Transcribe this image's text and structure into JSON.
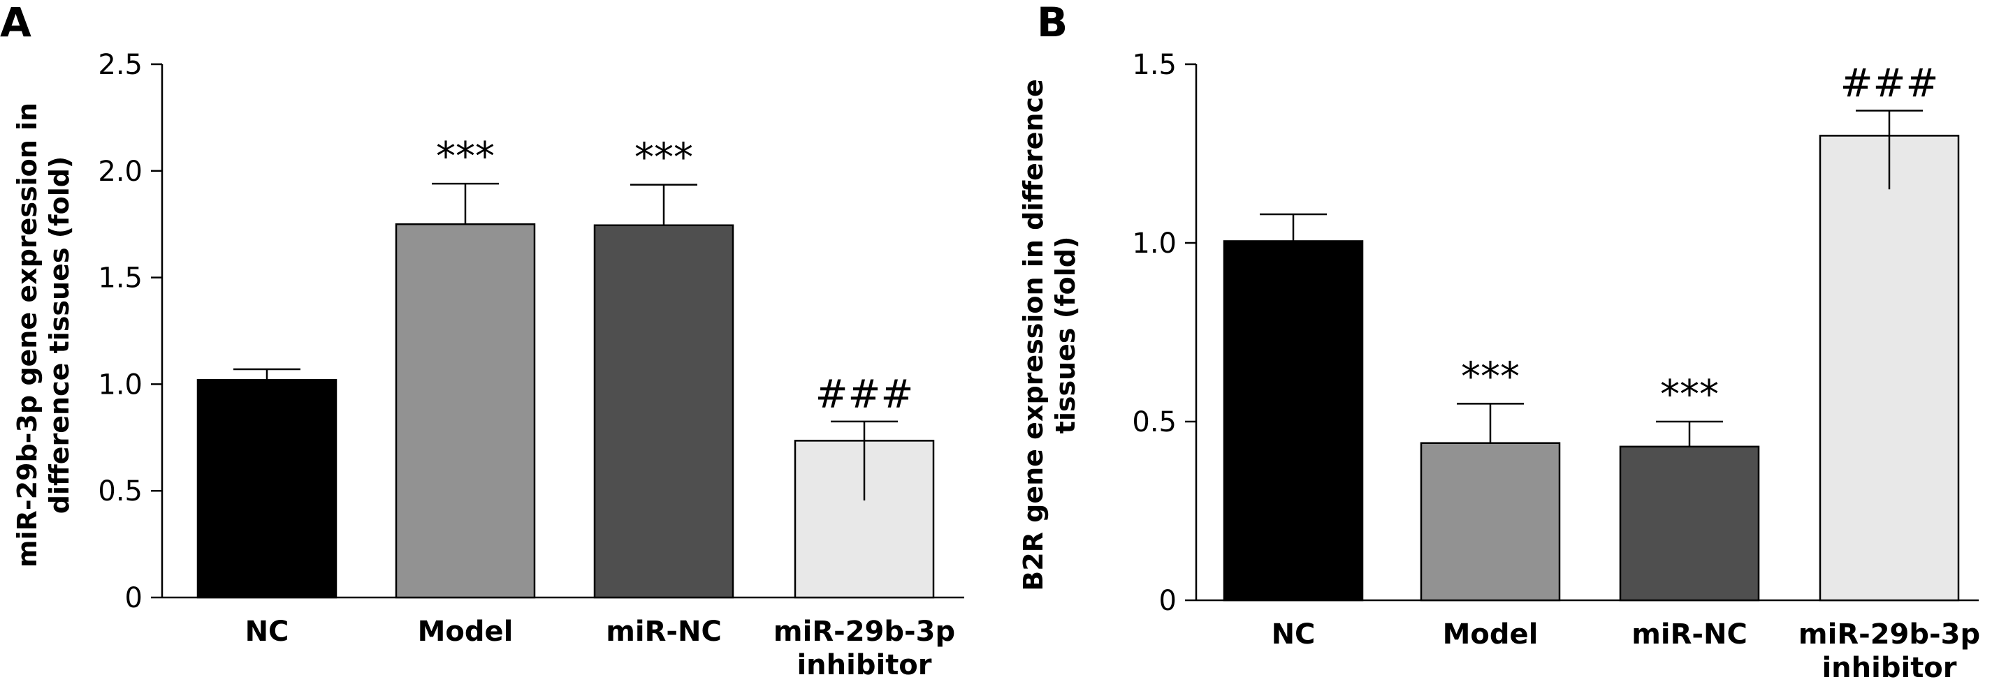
{
  "chart_data": [
    {
      "type": "bar",
      "panel": "A",
      "categories": [
        [
          "NC"
        ],
        [
          "Model"
        ],
        [
          "miR-NC"
        ],
        [
          "miR-29b-3p",
          "inhibitor"
        ]
      ],
      "values": [
        1.02,
        1.75,
        1.745,
        0.735
      ],
      "errors": [
        0.05,
        0.19,
        0.19,
        0.09
      ],
      "error_lower": [
        null,
        null,
        null,
        0.28
      ],
      "annotations": [
        "",
        "***",
        "***",
        "###"
      ],
      "ylabel": [
        "miR-29b-3p gene expression in",
        "difference tissues (fold)"
      ],
      "ylim": [
        0,
        2.5
      ],
      "yticks": [
        {
          "value": 0,
          "label": "0"
        },
        {
          "value": 0.5,
          "label": "0.5"
        },
        {
          "value": 1.0,
          "label": "1.0"
        },
        {
          "value": 1.5,
          "label": "1.5"
        },
        {
          "value": 2.0,
          "label": "2.0"
        },
        {
          "value": 2.5,
          "label": "2.5"
        }
      ],
      "colors": [
        "#000000",
        "#929292",
        "#4f4f4f",
        "#e8e8e8"
      ],
      "grid": false,
      "legend": "none"
    },
    {
      "type": "bar",
      "panel": "B",
      "categories": [
        [
          "NC"
        ],
        [
          "Model"
        ],
        [
          "miR-NC"
        ],
        [
          "miR-29b-3p",
          "inhibitor"
        ]
      ],
      "values": [
        1.005,
        0.44,
        0.43,
        1.3
      ],
      "errors": [
        0.075,
        0.11,
        0.07,
        0.07
      ],
      "error_lower": [
        null,
        null,
        null,
        0.15
      ],
      "annotations": [
        "",
        "***",
        "***",
        "###"
      ],
      "ylabel": [
        "B2R gene expression in difference",
        "tissues (fold)"
      ],
      "ylim": [
        0,
        1.5
      ],
      "yticks": [
        {
          "value": 0,
          "label": "0"
        },
        {
          "value": 0.5,
          "label": "0.5"
        },
        {
          "value": 1.0,
          "label": "1.0"
        },
        {
          "value": 1.5,
          "label": "1.5"
        }
      ],
      "colors": [
        "#000000",
        "#929292",
        "#4f4f4f",
        "#e8e8e8"
      ],
      "grid": false,
      "legend": "none"
    }
  ]
}
